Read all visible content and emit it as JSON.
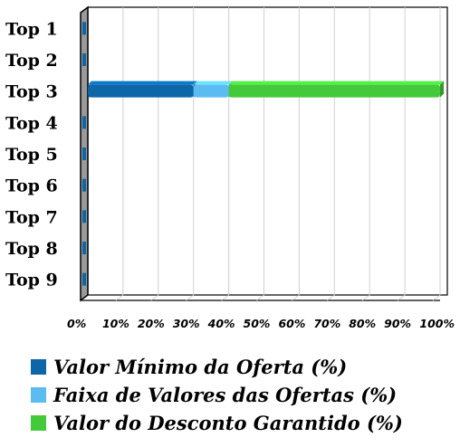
{
  "chart_data": {
    "type": "bar",
    "orientation": "horizontal",
    "stacked": true,
    "style": "3d",
    "categories": [
      "Top 1",
      "Top 2",
      "Top 3",
      "Top 4",
      "Top 5",
      "Top 6",
      "Top 7",
      "Top 8",
      "Top 9"
    ],
    "series": [
      {
        "name": "Valor Mínimo da Oferta (%)",
        "color": "#0c66a8",
        "values": [
          0,
          0,
          30,
          0,
          0,
          0,
          0,
          0,
          0
        ]
      },
      {
        "name": "Faixa de Valores das Ofertas (%)",
        "color": "#5bbcf2",
        "values": [
          0,
          0,
          10,
          0,
          0,
          0,
          0,
          0,
          0
        ]
      },
      {
        "name": "Valor do Desconto Garantido (%)",
        "color": "#44c93a",
        "values": [
          0,
          0,
          60,
          0,
          0,
          0,
          0,
          0,
          0
        ]
      }
    ],
    "x_ticks": [
      "0%",
      "10%",
      "20%",
      "30%",
      "40%",
      "50%",
      "60%",
      "70%",
      "80%",
      "90%",
      "100%"
    ],
    "xlim": [
      0,
      100
    ],
    "grid": true,
    "legend_position": "bottom"
  }
}
